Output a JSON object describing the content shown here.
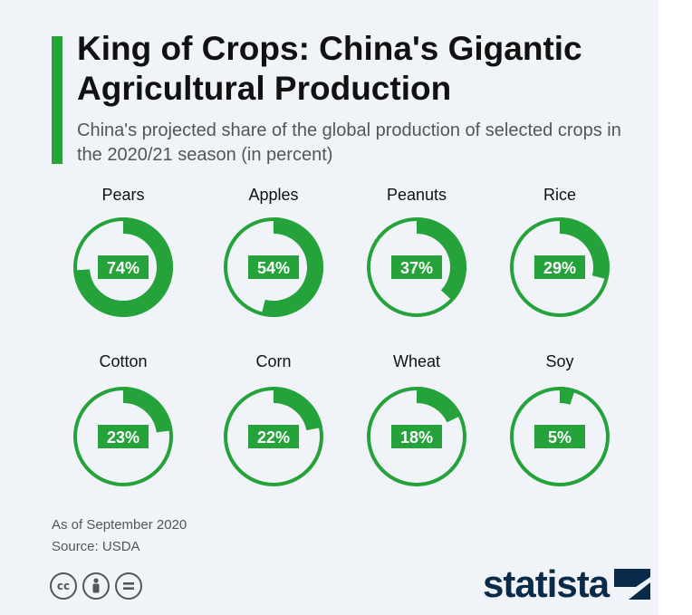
{
  "header": {
    "title": "King of Crops: China's Gigantic Agricultural Production",
    "subtitle": "China's projected share of the global production of selected crops in the 2020/21 season (in percent)"
  },
  "footer": {
    "note": "As of September 2020",
    "source": "Source: USDA",
    "brand": "statista"
  },
  "colors": {
    "accent": "#25a33a",
    "background": "#f0f4f8",
    "brand": "#0a2a4a"
  },
  "icons": [
    "creative-commons-icon",
    "attribution-icon",
    "no-derivatives-icon",
    "statista-logo-icon"
  ],
  "chart_data": {
    "type": "pie",
    "categories": [
      "Pears",
      "Apples",
      "Peanuts",
      "Rice",
      "Cotton",
      "Corn",
      "Wheat",
      "Soy"
    ],
    "values": [
      74,
      54,
      37,
      29,
      23,
      22,
      18,
      5
    ],
    "labels": [
      "74%",
      "54%",
      "37%",
      "29%",
      "23%",
      "22%",
      "18%",
      "5%"
    ],
    "unit": "%"
  }
}
